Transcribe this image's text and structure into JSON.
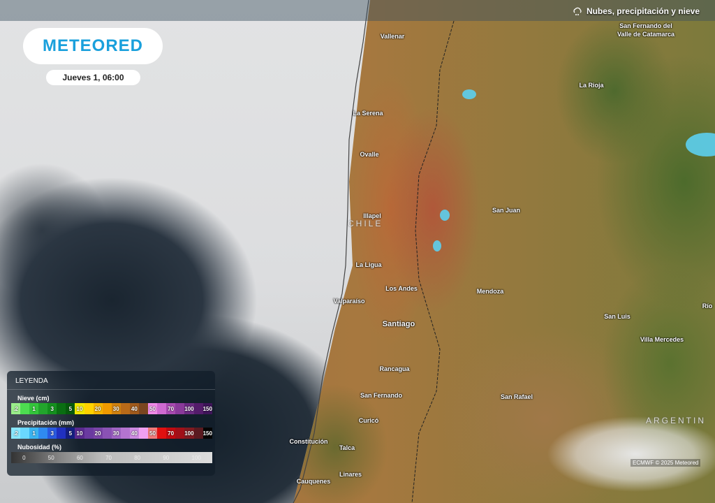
{
  "header": {
    "title": "Nubes, precipitación y nieve",
    "icon": "cloud-rain-icon"
  },
  "logo": "METEORED",
  "date": "Jueves 1, 06:00",
  "map": {
    "cities": [
      "Vallenar",
      "La Serena",
      "Ovalle",
      "Illapel",
      "La Ligua",
      "Los Andes",
      "Valparaíso",
      "Santiago",
      "Rancagua",
      "San Fernando",
      "Curicó",
      "Constitución",
      "Talca",
      "Linares",
      "Cauquenes",
      "San Fernando del",
      "Valle de Catamarca",
      "La Rioja",
      "San Juan",
      "Mendoza",
      "San Luis",
      "Villa Mercedes",
      "San Rafael",
      "Río"
    ],
    "countries": [
      "CHILE",
      "ARGENTIN"
    ]
  },
  "legend": {
    "title": "LEYENDA",
    "snow": {
      "label": "Nieve (cm)",
      "cells": [
        {
          "v": ".2",
          "c": "#9aee8a"
        },
        {
          "v": "",
          "c": "#4ddc50"
        },
        {
          "v": "1",
          "c": "#33c53b"
        },
        {
          "v": "",
          "c": "#22a52c"
        },
        {
          "v": "3",
          "c": "#14901e"
        },
        {
          "v": "",
          "c": "#0a6e12"
        },
        {
          "v": "5",
          "c": "#065a0c"
        },
        {
          "v": "10",
          "c": "#f0e800"
        },
        {
          "v": "",
          "c": "#ffd200"
        },
        {
          "v": "20",
          "c": "#f5b400"
        },
        {
          "v": "",
          "c": "#f09a00"
        },
        {
          "v": "30",
          "c": "#d08210"
        },
        {
          "v": "",
          "c": "#b96a18"
        },
        {
          "v": "40",
          "c": "#a05a1c"
        },
        {
          "v": "",
          "c": "#7a4520"
        },
        {
          "v": "50",
          "c": "#f08ae8"
        },
        {
          "v": "",
          "c": "#cf6ad0"
        },
        {
          "v": "70",
          "c": "#a84ab0"
        },
        {
          "v": "",
          "c": "#8a3a9a"
        },
        {
          "v": "100",
          "c": "#6a2a80"
        },
        {
          "v": "",
          "c": "#541c6a"
        },
        {
          "v": "150",
          "c": "#3e1458"
        }
      ]
    },
    "precip": {
      "label": "Precipitación (mm)",
      "cells": [
        {
          "v": ".2",
          "c": "#8ae8ff"
        },
        {
          "v": "",
          "c": "#6ad8ff"
        },
        {
          "v": "1",
          "c": "#3ab4f0"
        },
        {
          "v": "",
          "c": "#2f8af0"
        },
        {
          "v": "3",
          "c": "#2a5ae0"
        },
        {
          "v": "",
          "c": "#2030c0"
        },
        {
          "v": "5",
          "c": "#141e80"
        },
        {
          "v": "10",
          "c": "#5a2a90"
        },
        {
          "v": "",
          "c": "#6a3aa0"
        },
        {
          "v": "20",
          "c": "#7a44a8"
        },
        {
          "v": "",
          "c": "#8a52b4"
        },
        {
          "v": "30",
          "c": "#a064c4"
        },
        {
          "v": "",
          "c": "#b474d0"
        },
        {
          "v": "40",
          "c": "#cc8ae0"
        },
        {
          "v": "",
          "c": "#f0a0f0"
        },
        {
          "v": "50",
          "c": "#f07a7a"
        },
        {
          "v": "",
          "c": "#e01010"
        },
        {
          "v": "70",
          "c": "#c00a10"
        },
        {
          "v": "",
          "c": "#a01018"
        },
        {
          "v": "100",
          "c": "#801a20"
        },
        {
          "v": "",
          "c": "#5a1a20"
        },
        {
          "v": "150",
          "c": "#050505"
        }
      ]
    },
    "cloud": {
      "label": "Nubosidad (%)",
      "ticks": [
        "0",
        "50",
        "60",
        "70",
        "80",
        "90",
        "100"
      ]
    }
  },
  "credit": "ECMWF © 2025 Meteored"
}
